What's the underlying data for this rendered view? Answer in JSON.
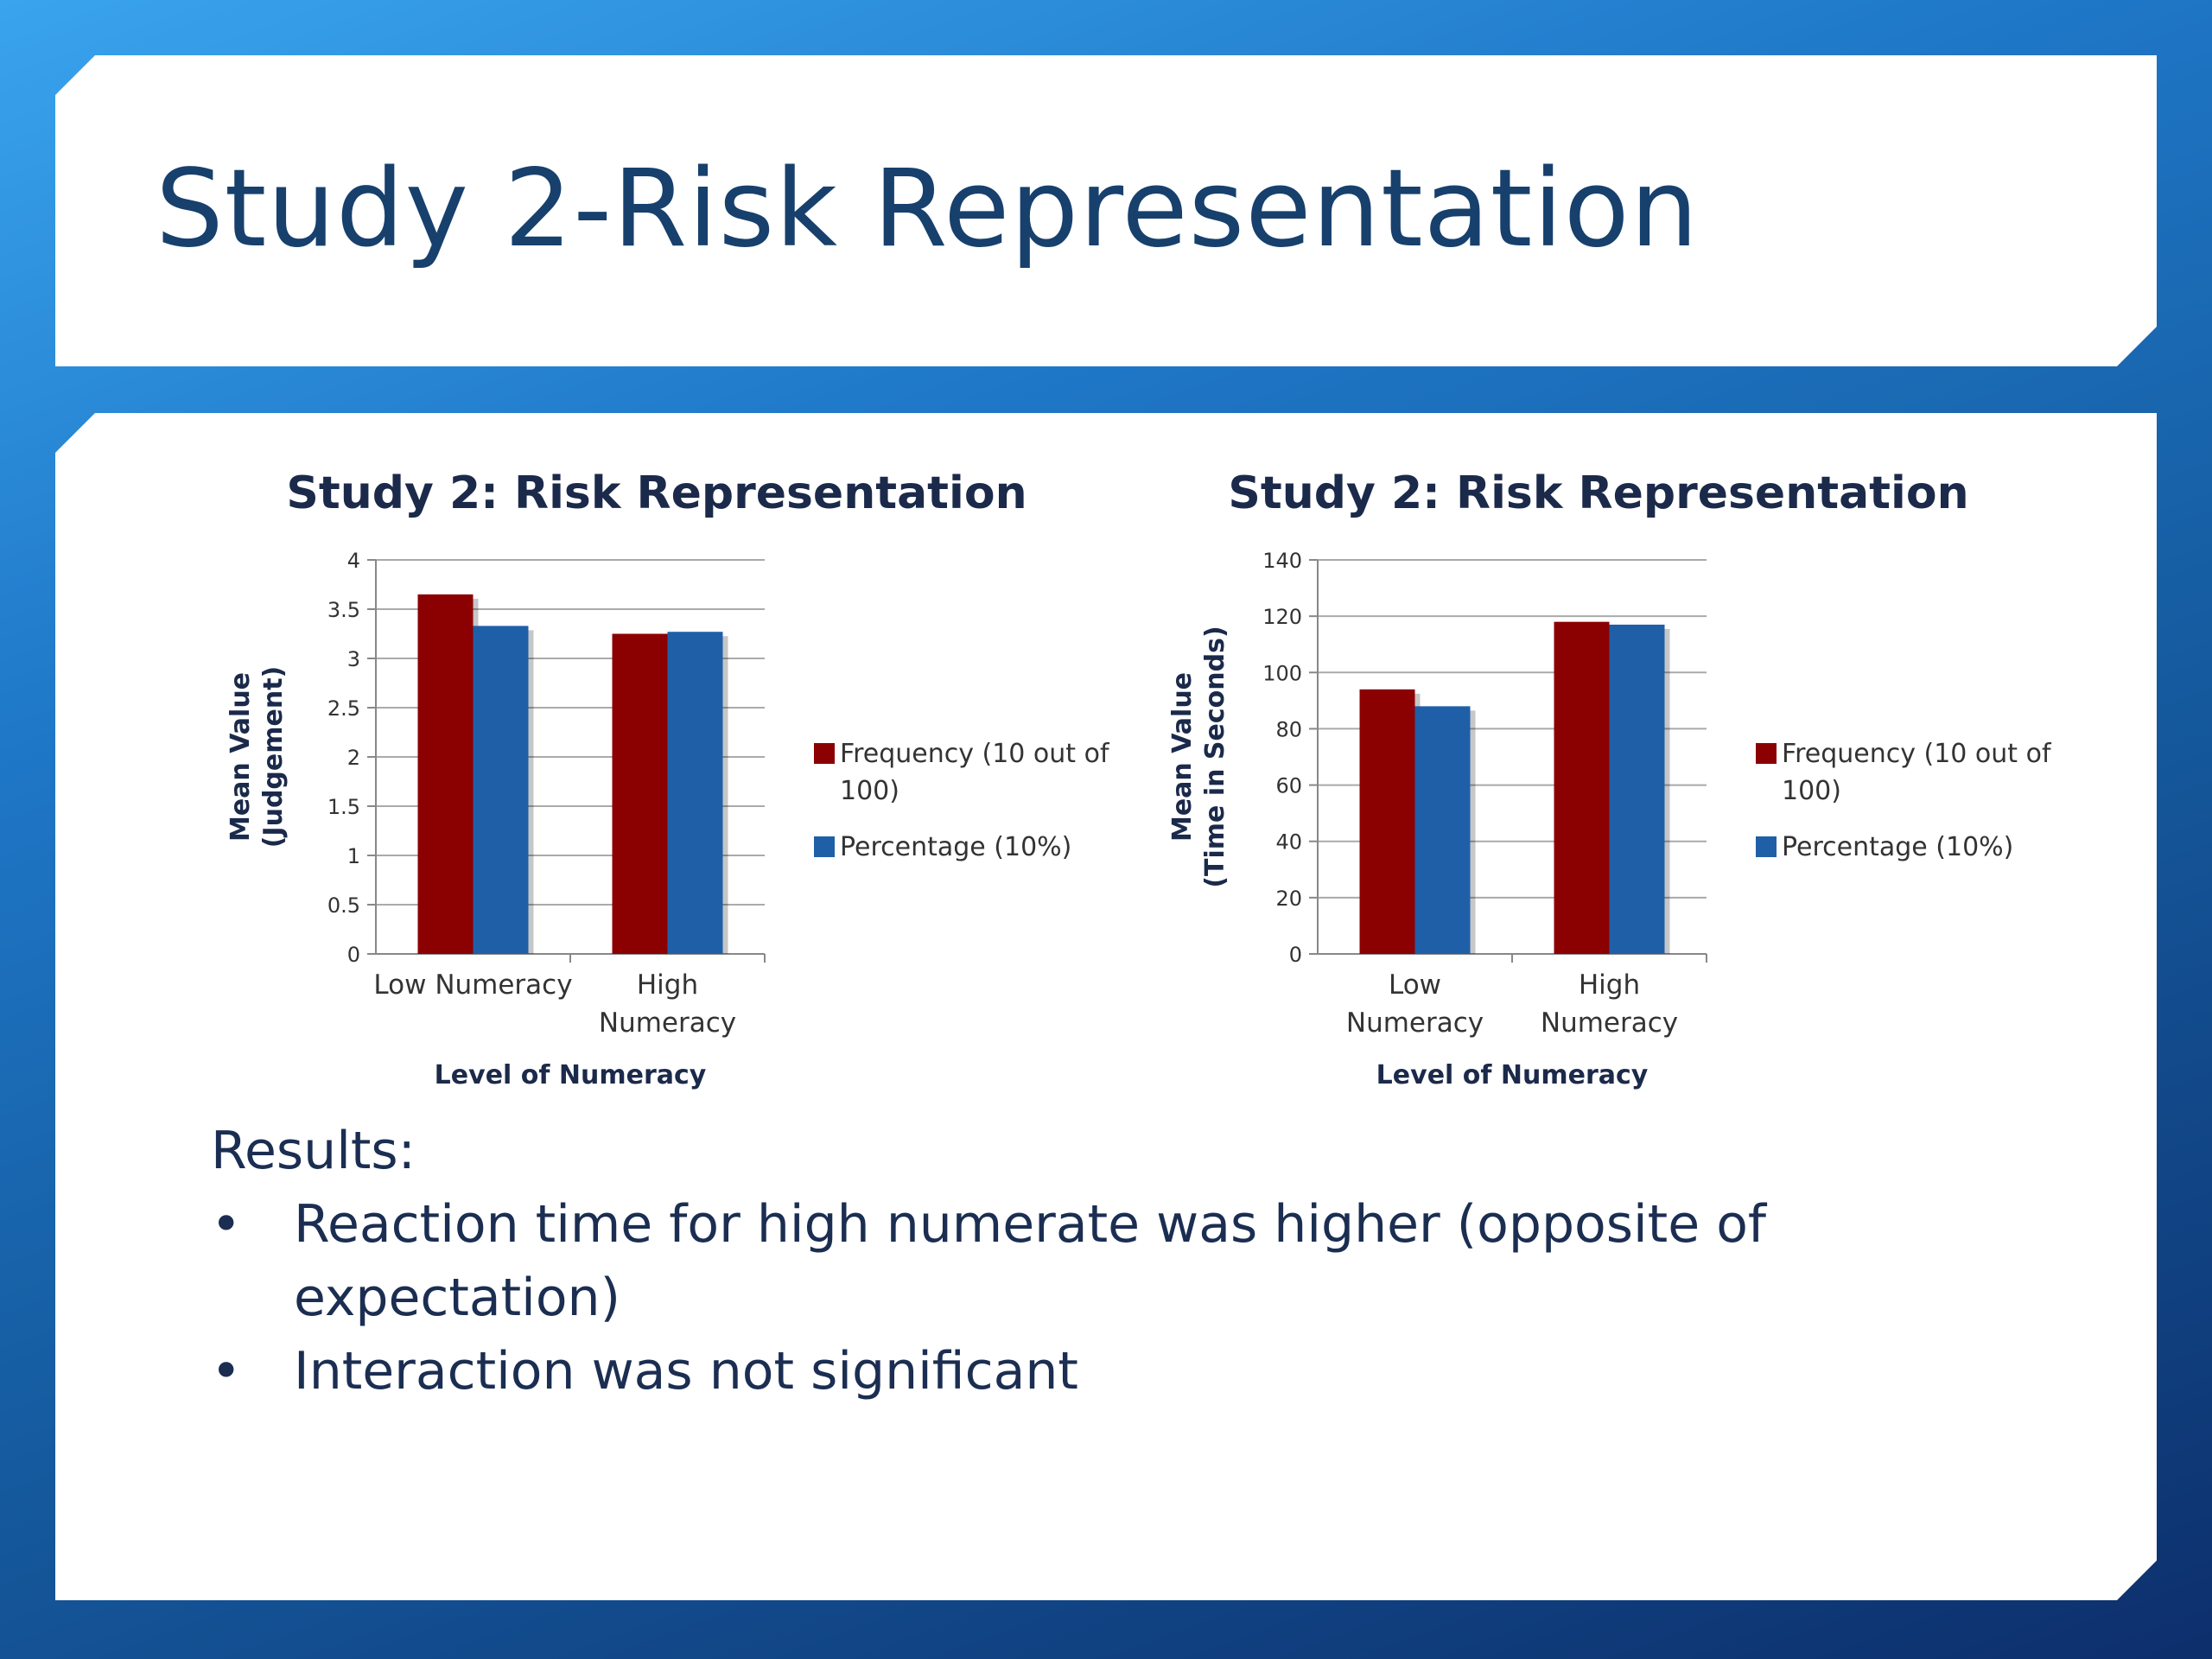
{
  "slide": {
    "title": "Study 2-Risk Representation",
    "results_heading": "Results:",
    "bullet_char": "•",
    "bullets": [
      "Reaction time for high numerate was higher (opposite of expectation)",
      "Interaction was not  significant"
    ]
  },
  "colors": {
    "title_text": "#17406d",
    "frequency": "#8b0000",
    "percentage": "#1f5fa8",
    "grid": "#aaaaaa"
  },
  "chart_data": [
    {
      "type": "bar",
      "title": "Study 2: Risk Representation",
      "xlabel": "Level of Numeracy",
      "ylabel_lines": [
        "Mean Value",
        "(Judgement)"
      ],
      "categories": [
        [
          "Low Numeracy"
        ],
        [
          "High",
          "Numeracy"
        ]
      ],
      "series": [
        {
          "name_lines": [
            "Frequency (10 out of",
            "100)"
          ],
          "values": [
            3.65,
            3.25
          ]
        },
        {
          "name_lines": [
            "Percentage (10%)"
          ],
          "values": [
            3.33,
            3.27
          ]
        }
      ],
      "ylim": [
        0,
        4
      ],
      "yticks": [
        "0",
        "0.5",
        "1",
        "1.5",
        "2",
        "2.5",
        "3",
        "3.5",
        "4"
      ],
      "grid": true,
      "legend": "right"
    },
    {
      "type": "bar",
      "title": "Study 2: Risk Representation",
      "xlabel": "Level of Numeracy",
      "ylabel_lines": [
        "Mean Value",
        "(Time in Seconds)"
      ],
      "categories": [
        [
          "Low",
          "Numeracy"
        ],
        [
          "High",
          "Numeracy"
        ]
      ],
      "series": [
        {
          "name_lines": [
            "Frequency (10 out of",
            "100)"
          ],
          "values": [
            94,
            118
          ]
        },
        {
          "name_lines": [
            "Percentage (10%)"
          ],
          "values": [
            88,
            117
          ]
        }
      ],
      "ylim": [
        0,
        140
      ],
      "yticks": [
        "0",
        "20",
        "40",
        "60",
        "80",
        "100",
        "120",
        "140"
      ],
      "grid": true,
      "legend": "right"
    }
  ]
}
